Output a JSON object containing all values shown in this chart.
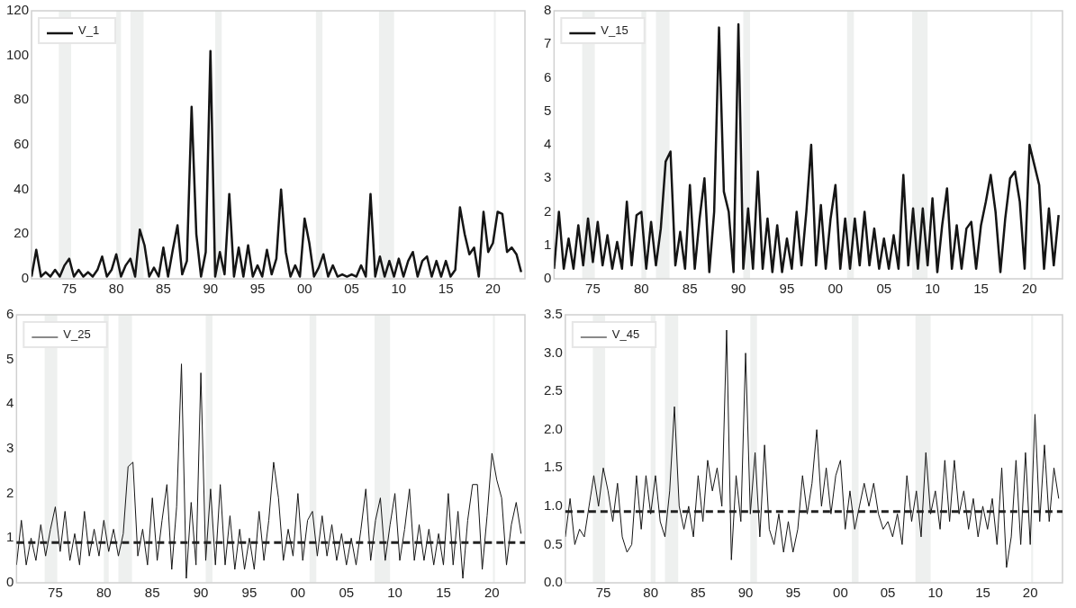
{
  "chart_data": [
    {
      "type": "line",
      "legend": "top left",
      "xlim": [
        1971,
        2023.4
      ],
      "xticks": [
        {
          "value": 1975,
          "label": "75"
        },
        {
          "value": 1980,
          "label": "80"
        },
        {
          "value": 1985,
          "label": "85"
        },
        {
          "value": 1990,
          "label": "90"
        },
        {
          "value": 1995,
          "label": "95"
        },
        {
          "value": 2000,
          "label": "00"
        },
        {
          "value": 2005,
          "label": "05"
        },
        {
          "value": 2010,
          "label": "10"
        },
        {
          "value": 2015,
          "label": "15"
        },
        {
          "value": 2020,
          "label": "20"
        }
      ],
      "ylim": [
        0,
        120
      ],
      "yticks": [
        0,
        20,
        40,
        60,
        80,
        100,
        120
      ],
      "x": [
        1971,
        1971.5,
        1972,
        1972.5,
        1973,
        1973.5,
        1974,
        1974.5,
        1975,
        1975.5,
        1976,
        1976.5,
        1977,
        1977.5,
        1978,
        1978.5,
        1979,
        1979.5,
        1980,
        1980.5,
        1981,
        1981.5,
        1982,
        1982.5,
        1983,
        1983.5,
        1984,
        1984.5,
        1985,
        1985.5,
        1986,
        1986.5,
        1987,
        1987.5,
        1988,
        1988.5,
        1989,
        1989.5,
        1990,
        1990.5,
        1991,
        1991.5,
        1992,
        1992.5,
        1993,
        1993.5,
        1994,
        1994.5,
        1995,
        1995.5,
        1996,
        1996.5,
        1997,
        1997.5,
        1998,
        1998.5,
        1999,
        1999.5,
        2000,
        2000.5,
        2001,
        2001.5,
        2002,
        2002.5,
        2003,
        2003.5,
        2004,
        2004.5,
        2005,
        2005.5,
        2006,
        2006.5,
        2007,
        2007.5,
        2008,
        2008.5,
        2009,
        2009.5,
        2010,
        2010.5,
        2011,
        2011.5,
        2012,
        2012.5,
        2013,
        2013.5,
        2014,
        2014.5,
        2015,
        2015.5,
        2016,
        2016.5,
        2017,
        2017.5,
        2018,
        2018.5,
        2019,
        2019.5,
        2020,
        2020.5,
        2021,
        2021.5,
        2022,
        2022.5,
        2023
      ],
      "series": [
        {
          "name": "V_1",
          "color": "#151515",
          "values": [
            1,
            13,
            1,
            3,
            1,
            4,
            1,
            6,
            9,
            1,
            4,
            1,
            3,
            1,
            4,
            10,
            1,
            4,
            11,
            1,
            6,
            9,
            1,
            22,
            15,
            1,
            5,
            1,
            14,
            1,
            13,
            24,
            2,
            8,
            77,
            20,
            1,
            12,
            102,
            1,
            12,
            2,
            38,
            1,
            14,
            1,
            15,
            1,
            6,
            1,
            13,
            2,
            9,
            40,
            12,
            1,
            6,
            1,
            27,
            16,
            1,
            5,
            11,
            1,
            6,
            1,
            2,
            1,
            2,
            1,
            6,
            1,
            38,
            1,
            10,
            1,
            8,
            1,
            9,
            1,
            8,
            12,
            1,
            8,
            10,
            1,
            8,
            1,
            8,
            1,
            4,
            32,
            20,
            11,
            14,
            1,
            30,
            12,
            16,
            30,
            29,
            12,
            14,
            11,
            3
          ]
        }
      ],
      "bands": [
        {
          "axis": "x",
          "from": 1973.9,
          "to": 1975.2,
          "color": "#eef0ef"
        },
        {
          "axis": "x",
          "from": 1980,
          "to": 1980.5,
          "color": "#eef0ef"
        },
        {
          "axis": "x",
          "from": 1981.5,
          "to": 1982.9,
          "color": "#eef0ef"
        },
        {
          "axis": "x",
          "from": 1990.5,
          "to": 1991.2,
          "color": "#eef0ef"
        },
        {
          "axis": "x",
          "from": 2001.2,
          "to": 2001.9,
          "color": "#eef0ef"
        },
        {
          "axis": "x",
          "from": 2007.9,
          "to": 2009.5,
          "color": "#eef0ef"
        },
        {
          "axis": "x",
          "from": 2020.1,
          "to": 2020.3,
          "color": "#eef0ef"
        }
      ]
    },
    {
      "type": "line",
      "legend": "top left",
      "xlim": [
        1971,
        2023.4
      ],
      "xticks": [
        {
          "value": 1975,
          "label": "75"
        },
        {
          "value": 1980,
          "label": "80"
        },
        {
          "value": 1985,
          "label": "85"
        },
        {
          "value": 1990,
          "label": "90"
        },
        {
          "value": 1995,
          "label": "95"
        },
        {
          "value": 2000,
          "label": "00"
        },
        {
          "value": 2005,
          "label": "05"
        },
        {
          "value": 2010,
          "label": "10"
        },
        {
          "value": 2015,
          "label": "15"
        },
        {
          "value": 2020,
          "label": "20"
        }
      ],
      "ylim": [
        0,
        8
      ],
      "yticks": [
        0,
        1,
        2,
        3,
        4,
        5,
        6,
        7,
        8
      ],
      "x": [
        1971,
        1971.5,
        1972,
        1972.5,
        1973,
        1973.5,
        1974,
        1974.5,
        1975,
        1975.5,
        1976,
        1976.5,
        1977,
        1977.5,
        1978,
        1978.5,
        1979,
        1979.5,
        1980,
        1980.5,
        1981,
        1981.5,
        1982,
        1982.5,
        1983,
        1983.5,
        1984,
        1984.5,
        1985,
        1985.5,
        1986,
        1986.5,
        1987,
        1987.5,
        1988,
        1988.5,
        1989,
        1989.5,
        1990,
        1990.5,
        1991,
        1991.5,
        1992,
        1992.5,
        1993,
        1993.5,
        1994,
        1994.5,
        1995,
        1995.5,
        1996,
        1996.5,
        1997,
        1997.5,
        1998,
        1998.5,
        1999,
        1999.5,
        2000,
        2000.5,
        2001,
        2001.5,
        2002,
        2002.5,
        2003,
        2003.5,
        2004,
        2004.5,
        2005,
        2005.5,
        2006,
        2006.5,
        2007,
        2007.5,
        2008,
        2008.5,
        2009,
        2009.5,
        2010,
        2010.5,
        2011,
        2011.5,
        2012,
        2012.5,
        2013,
        2013.5,
        2014,
        2014.5,
        2015,
        2015.5,
        2016,
        2016.5,
        2017,
        2017.5,
        2018,
        2018.5,
        2019,
        2019.5,
        2020,
        2020.5,
        2021,
        2021.5,
        2022,
        2022.5,
        2023
      ],
      "series": [
        {
          "name": "V_15",
          "color": "#151515",
          "values": [
            0.3,
            2.0,
            0.3,
            1.2,
            0.3,
            1.6,
            0.4,
            1.8,
            0.5,
            1.7,
            0.4,
            1.3,
            0.3,
            1.1,
            0.3,
            2.3,
            0.4,
            1.9,
            2.0,
            0.3,
            1.7,
            0.4,
            1.5,
            3.5,
            3.8,
            0.4,
            1.4,
            0.3,
            2.8,
            0.3,
            1.8,
            3.0,
            0.2,
            2.0,
            7.5,
            2.6,
            2.0,
            0.2,
            7.6,
            0.3,
            2.1,
            0.3,
            3.2,
            0.3,
            1.8,
            0.2,
            1.6,
            0.2,
            1.2,
            0.3,
            2.0,
            0.4,
            2.0,
            4.0,
            0.4,
            2.2,
            0.3,
            1.8,
            2.8,
            0.3,
            1.8,
            0.3,
            1.8,
            0.4,
            2.0,
            0.4,
            1.5,
            0.3,
            1.2,
            0.3,
            1.3,
            0.3,
            3.1,
            0.4,
            2.1,
            0.3,
            2.1,
            0.4,
            2.4,
            0.2,
            1.6,
            2.7,
            0.3,
            1.6,
            0.3,
            1.5,
            1.7,
            0.3,
            1.6,
            2.3,
            3.1,
            2.0,
            0.2,
            1.8,
            3.0,
            3.2,
            2.3,
            0.3,
            4.0,
            3.4,
            2.8,
            0.3,
            2.1,
            0.4,
            1.9
          ]
        }
      ],
      "bands": [
        {
          "axis": "x",
          "from": 1973.9,
          "to": 1975.2,
          "color": "#eef0ef"
        },
        {
          "axis": "x",
          "from": 1980,
          "to": 1980.5,
          "color": "#eef0ef"
        },
        {
          "axis": "x",
          "from": 1981.5,
          "to": 1982.9,
          "color": "#eef0ef"
        },
        {
          "axis": "x",
          "from": 1990.5,
          "to": 1991.2,
          "color": "#eef0ef"
        },
        {
          "axis": "x",
          "from": 2001.2,
          "to": 2001.9,
          "color": "#eef0ef"
        },
        {
          "axis": "x",
          "from": 2007.9,
          "to": 2009.5,
          "color": "#eef0ef"
        },
        {
          "axis": "x",
          "from": 2020.1,
          "to": 2020.3,
          "color": "#eef0ef"
        }
      ]
    },
    {
      "type": "line",
      "legend": "top left",
      "xlim": [
        1971,
        2023.4
      ],
      "xticks": [
        {
          "value": 1975,
          "label": "75"
        },
        {
          "value": 1980,
          "label": "80"
        },
        {
          "value": 1985,
          "label": "85"
        },
        {
          "value": 1990,
          "label": "90"
        },
        {
          "value": 1995,
          "label": "95"
        },
        {
          "value": 2000,
          "label": "00"
        },
        {
          "value": 2005,
          "label": "05"
        },
        {
          "value": 2010,
          "label": "10"
        },
        {
          "value": 2015,
          "label": "15"
        },
        {
          "value": 2020,
          "label": "20"
        }
      ],
      "ylim": [
        0,
        6
      ],
      "yticks": [
        0,
        1,
        2,
        3,
        4,
        5,
        6
      ],
      "x": [
        1971,
        1971.5,
        1972,
        1972.5,
        1973,
        1973.5,
        1974,
        1974.5,
        1975,
        1975.5,
        1976,
        1976.5,
        1977,
        1977.5,
        1978,
        1978.5,
        1979,
        1979.5,
        1980,
        1980.5,
        1981,
        1981.5,
        1982,
        1982.5,
        1983,
        1983.5,
        1984,
        1984.5,
        1985,
        1985.5,
        1986,
        1986.5,
        1987,
        1987.5,
        1988,
        1988.5,
        1989,
        1989.5,
        1990,
        1990.5,
        1991,
        1991.5,
        1992,
        1992.5,
        1993,
        1993.5,
        1994,
        1994.5,
        1995,
        1995.5,
        1996,
        1996.5,
        1997,
        1997.5,
        1998,
        1998.5,
        1999,
        1999.5,
        2000,
        2000.5,
        2001,
        2001.5,
        2002,
        2002.5,
        2003,
        2003.5,
        2004,
        2004.5,
        2005,
        2005.5,
        2006,
        2006.5,
        2007,
        2007.5,
        2008,
        2008.5,
        2009,
        2009.5,
        2010,
        2010.5,
        2011,
        2011.5,
        2012,
        2012.5,
        2013,
        2013.5,
        2014,
        2014.5,
        2015,
        2015.5,
        2016,
        2016.5,
        2017,
        2017.5,
        2018,
        2018.5,
        2019,
        2019.5,
        2020,
        2020.5,
        2021,
        2021.5,
        2022,
        2022.5,
        2023
      ],
      "series": [
        {
          "name": "V_25",
          "color": "#151515",
          "values": [
            0.4,
            1.4,
            0.4,
            1.0,
            0.5,
            1.3,
            0.6,
            1.2,
            1.7,
            0.7,
            1.6,
            0.5,
            1.1,
            0.4,
            1.6,
            0.6,
            1.2,
            0.6,
            1.4,
            0.7,
            1.2,
            0.6,
            1.1,
            2.6,
            2.7,
            0.6,
            1.2,
            0.4,
            1.9,
            0.5,
            1.4,
            2.2,
            0.3,
            1.7,
            4.9,
            0.1,
            1.8,
            0.4,
            4.7,
            0.5,
            2.1,
            0.4,
            2.2,
            0.4,
            1.5,
            0.3,
            1.2,
            0.3,
            1.0,
            0.3,
            1.6,
            0.5,
            1.4,
            2.7,
            1.9,
            0.5,
            1.2,
            0.6,
            2.0,
            0.5,
            1.4,
            1.6,
            0.6,
            1.5,
            0.6,
            1.3,
            0.5,
            1.1,
            0.4,
            1.0,
            0.4,
            1.2,
            2.1,
            0.5,
            1.4,
            1.9,
            0.5,
            1.3,
            2.0,
            0.5,
            1.2,
            2.1,
            0.5,
            1.3,
            0.5,
            1.2,
            0.4,
            1.1,
            0.4,
            2.0,
            0.4,
            1.6,
            0.1,
            1.4,
            2.2,
            2.2,
            0.3,
            1.5,
            2.9,
            2.3,
            1.9,
            0.4,
            1.3,
            1.8,
            1.1
          ]
        }
      ],
      "bands": [
        {
          "axis": "x",
          "from": 1973.9,
          "to": 1975.2,
          "color": "#eef0ef"
        },
        {
          "axis": "x",
          "from": 1980,
          "to": 1980.5,
          "color": "#eef0ef"
        },
        {
          "axis": "x",
          "from": 1981.5,
          "to": 1982.9,
          "color": "#eef0ef"
        },
        {
          "axis": "x",
          "from": 1990.5,
          "to": 1991.2,
          "color": "#eef0ef"
        },
        {
          "axis": "x",
          "from": 2001.2,
          "to": 2001.9,
          "color": "#eef0ef"
        },
        {
          "axis": "x",
          "from": 2007.9,
          "to": 2009.5,
          "color": "#eef0ef"
        },
        {
          "axis": "x",
          "from": 2020.1,
          "to": 2020.3,
          "color": "#eef0ef"
        }
      ],
      "ref_lines": [
        {
          "axis": "y",
          "value": 0.9,
          "color": "#222222",
          "line_style": "dashed"
        }
      ]
    },
    {
      "type": "line",
      "legend": "top left",
      "xlim": [
        1971,
        2023.4
      ],
      "xticks": [
        {
          "value": 1975,
          "label": "75"
        },
        {
          "value": 1980,
          "label": "80"
        },
        {
          "value": 1985,
          "label": "85"
        },
        {
          "value": 1990,
          "label": "90"
        },
        {
          "value": 1995,
          "label": "95"
        },
        {
          "value": 2000,
          "label": "00"
        },
        {
          "value": 2005,
          "label": "05"
        },
        {
          "value": 2010,
          "label": "10"
        },
        {
          "value": 2015,
          "label": "15"
        },
        {
          "value": 2020,
          "label": "20"
        }
      ],
      "ylim": [
        0,
        3.5
      ],
      "yticks": [
        {
          "value": 0,
          "label": "0.0"
        },
        {
          "value": 0.5,
          "label": "0.5"
        },
        {
          "value": 1,
          "label": "1.0"
        },
        {
          "value": 1.5,
          "label": "1.5"
        },
        {
          "value": 2,
          "label": "2.0"
        },
        {
          "value": 2.5,
          "label": "2.5"
        },
        {
          "value": 3,
          "label": "3.0"
        },
        {
          "value": 3.5,
          "label": "3.5"
        }
      ],
      "x": [
        1971,
        1971.5,
        1972,
        1972.5,
        1973,
        1973.5,
        1974,
        1974.5,
        1975,
        1975.5,
        1976,
        1976.5,
        1977,
        1977.5,
        1978,
        1978.5,
        1979,
        1979.5,
        1980,
        1980.5,
        1981,
        1981.5,
        1982,
        1982.5,
        1983,
        1983.5,
        1984,
        1984.5,
        1985,
        1985.5,
        1986,
        1986.5,
        1987,
        1987.5,
        1988,
        1988.5,
        1989,
        1989.5,
        1990,
        1990.5,
        1991,
        1991.5,
        1992,
        1992.5,
        1993,
        1993.5,
        1994,
        1994.5,
        1995,
        1995.5,
        1996,
        1996.5,
        1997,
        1997.5,
        1998,
        1998.5,
        1999,
        1999.5,
        2000,
        2000.5,
        2001,
        2001.5,
        2002,
        2002.5,
        2003,
        2003.5,
        2004,
        2004.5,
        2005,
        2005.5,
        2006,
        2006.5,
        2007,
        2007.5,
        2008,
        2008.5,
        2009,
        2009.5,
        2010,
        2010.5,
        2011,
        2011.5,
        2012,
        2012.5,
        2013,
        2013.5,
        2014,
        2014.5,
        2015,
        2015.5,
        2016,
        2016.5,
        2017,
        2017.5,
        2018,
        2018.5,
        2019,
        2019.5,
        2020,
        2020.5,
        2021,
        2021.5,
        2022,
        2022.5,
        2023
      ],
      "series": [
        {
          "name": "V_45",
          "color": "#151515",
          "values": [
            0.6,
            1.1,
            0.5,
            0.7,
            0.6,
            1.0,
            1.4,
            1.0,
            1.5,
            1.2,
            0.8,
            1.3,
            0.6,
            0.4,
            0.5,
            1.4,
            0.7,
            1.4,
            0.9,
            1.4,
            0.8,
            0.6,
            1.2,
            2.3,
            1.0,
            0.7,
            1.0,
            0.6,
            1.4,
            0.8,
            1.6,
            1.2,
            1.5,
            1.0,
            3.3,
            0.3,
            1.4,
            0.8,
            3.0,
            0.9,
            1.7,
            0.6,
            1.8,
            0.7,
            0.5,
            0.9,
            0.4,
            0.8,
            0.4,
            0.7,
            1.4,
            0.9,
            1.3,
            2.0,
            1.0,
            1.5,
            0.9,
            1.4,
            1.6,
            0.7,
            1.2,
            0.7,
            1.0,
            1.3,
            1.0,
            1.3,
            0.9,
            0.7,
            0.8,
            0.6,
            0.9,
            0.5,
            1.4,
            0.8,
            1.2,
            0.6,
            1.7,
            0.9,
            1.2,
            0.7,
            1.6,
            0.8,
            1.6,
            0.9,
            1.2,
            0.7,
            1.1,
            0.6,
            1.0,
            0.7,
            1.1,
            0.5,
            1.5,
            0.2,
            0.6,
            1.6,
            0.5,
            1.7,
            0.5,
            2.2,
            0.8,
            1.8,
            0.8,
            1.5,
            1.1
          ]
        }
      ],
      "bands": [
        {
          "axis": "x",
          "from": 1973.9,
          "to": 1975.2,
          "color": "#eef0ef"
        },
        {
          "axis": "x",
          "from": 1980,
          "to": 1980.5,
          "color": "#eef0ef"
        },
        {
          "axis": "x",
          "from": 1981.5,
          "to": 1982.9,
          "color": "#eef0ef"
        },
        {
          "axis": "x",
          "from": 1990.5,
          "to": 1991.2,
          "color": "#eef0ef"
        },
        {
          "axis": "x",
          "from": 2001.2,
          "to": 2001.9,
          "color": "#eef0ef"
        },
        {
          "axis": "x",
          "from": 2007.9,
          "to": 2009.5,
          "color": "#eef0ef"
        },
        {
          "axis": "x",
          "from": 2020.1,
          "to": 2020.3,
          "color": "#eef0ef"
        }
      ],
      "ref_lines": [
        {
          "axis": "y",
          "value": 0.93,
          "color": "#222222",
          "line_style": "dashed"
        }
      ]
    }
  ]
}
